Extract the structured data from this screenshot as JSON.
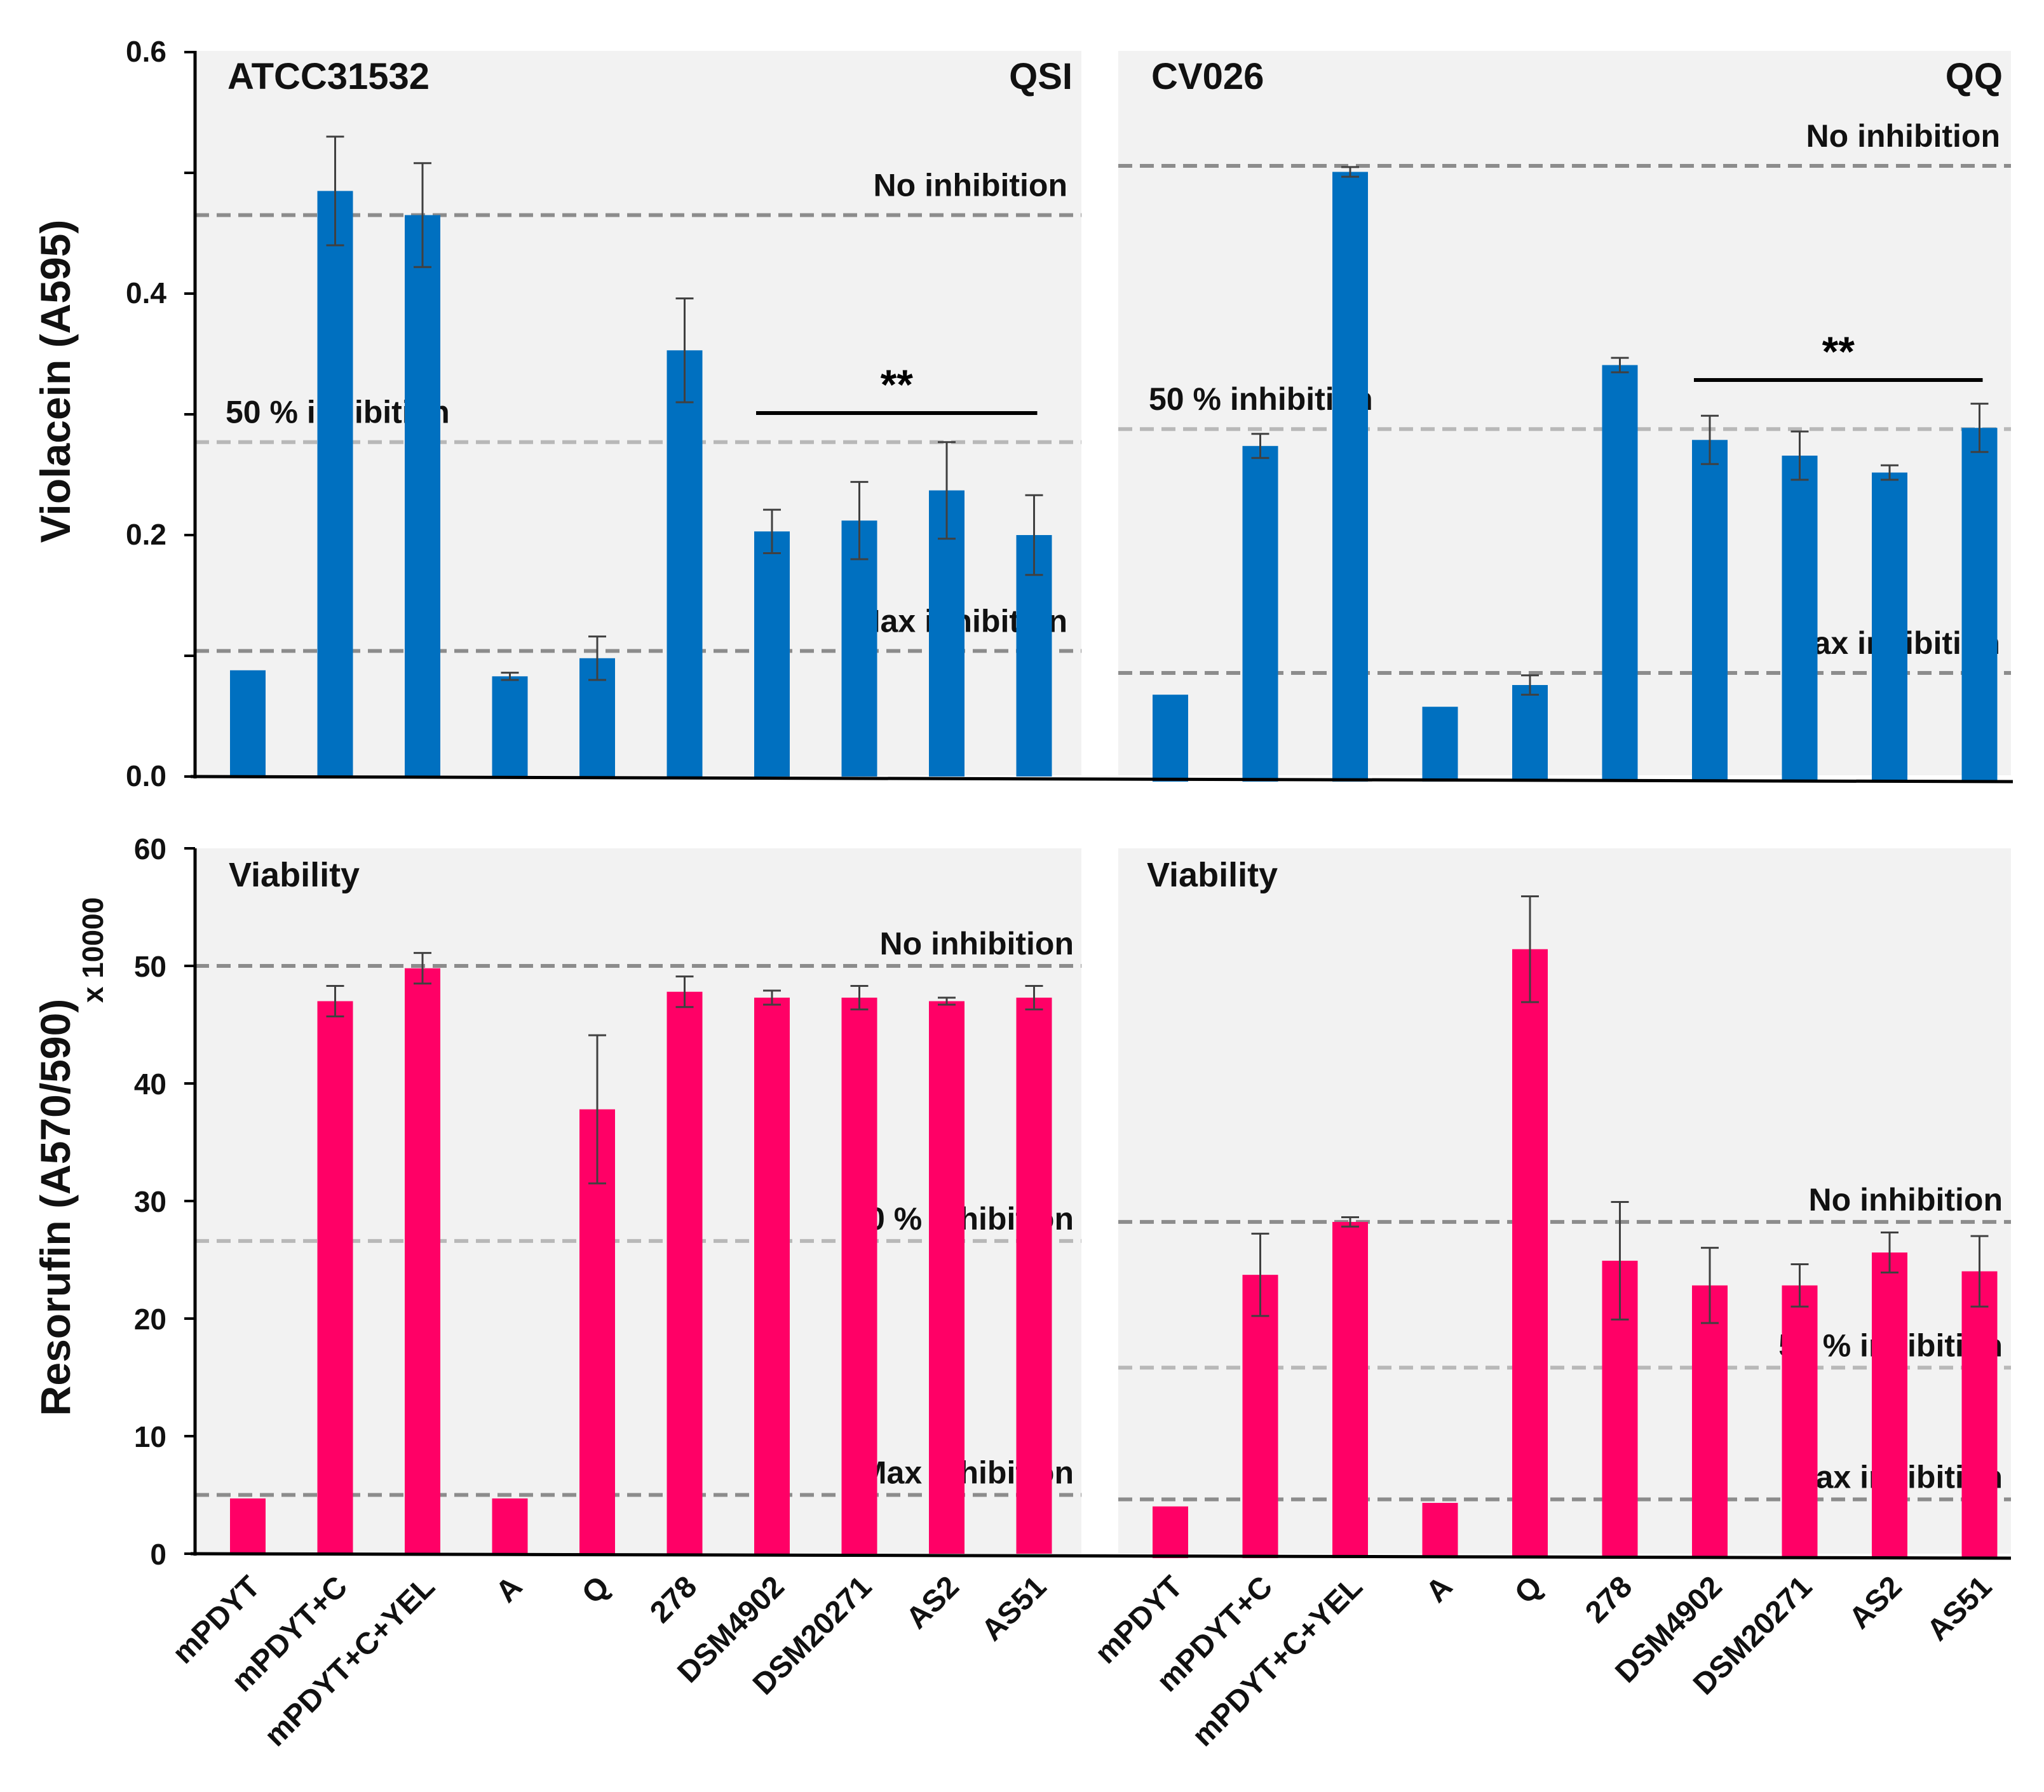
{
  "chart_data": [
    {
      "id": "violacein_qsi",
      "type": "bar",
      "panel_label": "ATCC31532",
      "corner_label": "QSI",
      "ylabel": "Violacein (A595)",
      "ylim": [
        0,
        0.6
      ],
      "yticks": [
        "0.0",
        "0.2",
        "0.4",
        "0.6"
      ],
      "categories": [
        "mPDYT",
        "mPDYT+C",
        "mPDYT+C+YEL",
        "A",
        "Q",
        "278",
        "DSM4902",
        "DSM20271",
        "AS2",
        "AS51"
      ],
      "values": [
        0.088,
        0.485,
        0.465,
        0.083,
        0.098,
        0.353,
        0.203,
        0.212,
        0.237,
        0.2
      ],
      "errors": [
        0.0,
        0.045,
        0.043,
        0.003,
        0.018,
        0.043,
        0.018,
        0.032,
        0.04,
        0.033
      ],
      "bar_color": "#0070c0",
      "reference_lines": [
        {
          "label": "No inhibition",
          "value": 0.465
        },
        {
          "label": "50 %  inhibition",
          "value": 0.277
        },
        {
          "label": "Max inhibition",
          "value": 0.104
        }
      ],
      "significance": {
        "label": "**",
        "from": "DSM4902",
        "to": "AS51"
      }
    },
    {
      "id": "violacein_qq",
      "type": "bar",
      "panel_label": "CV026",
      "corner_label": "QQ",
      "ylim": [
        0,
        0.6
      ],
      "categories": [
        "mPDYT",
        "mPDYT+C",
        "mPDYT+C+YEL",
        "A",
        "Q",
        "278",
        "DSM4902",
        "DSM20271",
        "AS2",
        "AS51"
      ],
      "values": [
        0.072,
        0.278,
        0.505,
        0.062,
        0.08,
        0.345,
        0.283,
        0.27,
        0.256,
        0.293
      ],
      "errors": [
        0.0,
        0.01,
        0.004,
        0.0,
        0.008,
        0.006,
        0.02,
        0.02,
        0.006,
        0.02
      ],
      "bar_color": "#0070c0",
      "reference_lines": [
        {
          "label": "No inhibition",
          "value": 0.51
        },
        {
          "label": "50 %  inhibition",
          "value": 0.292
        },
        {
          "label": "Max inhibition",
          "value": 0.09
        }
      ],
      "significance": {
        "label": "**",
        "from": "DSM4902",
        "to": "AS51"
      }
    },
    {
      "id": "resorufin_qsi",
      "type": "bar",
      "panel_label": "Viability",
      "ylabel": "Resorufin (A570/590)",
      "ylabel_multiplier": "x 10000",
      "ylim": [
        0,
        60
      ],
      "yticks": [
        "0",
        "10",
        "20",
        "30",
        "40",
        "50",
        "60"
      ],
      "categories": [
        "mPDYT",
        "mPDYT+C",
        "mPDYT+C+YEL",
        "A",
        "Q",
        "278",
        "DSM4902",
        "DSM20271",
        "AS2",
        "AS51"
      ],
      "values": [
        4.7,
        47.0,
        49.8,
        4.7,
        37.8,
        47.8,
        47.3,
        47.3,
        47.0,
        47.3
      ],
      "errors": [
        0.0,
        1.3,
        1.3,
        0.0,
        6.3,
        1.3,
        0.6,
        1.0,
        0.3,
        1.0
      ],
      "bar_color": "#ff0066",
      "reference_lines": [
        {
          "label": "No inhibition",
          "value": 50.0
        },
        {
          "label": "50 %  inhibition",
          "value": 26.6
        },
        {
          "label": "Max inhibition",
          "value": 5.0
        }
      ]
    },
    {
      "id": "resorufin_qq",
      "type": "bar",
      "panel_label": "Viability",
      "ylim": [
        0,
        60
      ],
      "categories": [
        "mPDYT",
        "mPDYT+C",
        "mPDYT+C+YEL",
        "A",
        "Q",
        "278",
        "DSM4902",
        "DSM20271",
        "AS2",
        "AS51"
      ],
      "values": [
        4.4,
        24.1,
        28.6,
        4.7,
        51.8,
        25.3,
        23.2,
        23.2,
        26.0,
        24.4
      ],
      "errors": [
        0.0,
        3.5,
        0.4,
        0.0,
        4.5,
        5.0,
        3.2,
        1.8,
        1.7,
        3.0
      ],
      "bar_color": "#ff0066",
      "reference_lines": [
        {
          "label": "No inhibition",
          "value": 28.6
        },
        {
          "label": "50 %  inhibition",
          "value": 16.2
        },
        {
          "label": "Max inhibition",
          "value": 5.0
        }
      ]
    }
  ]
}
